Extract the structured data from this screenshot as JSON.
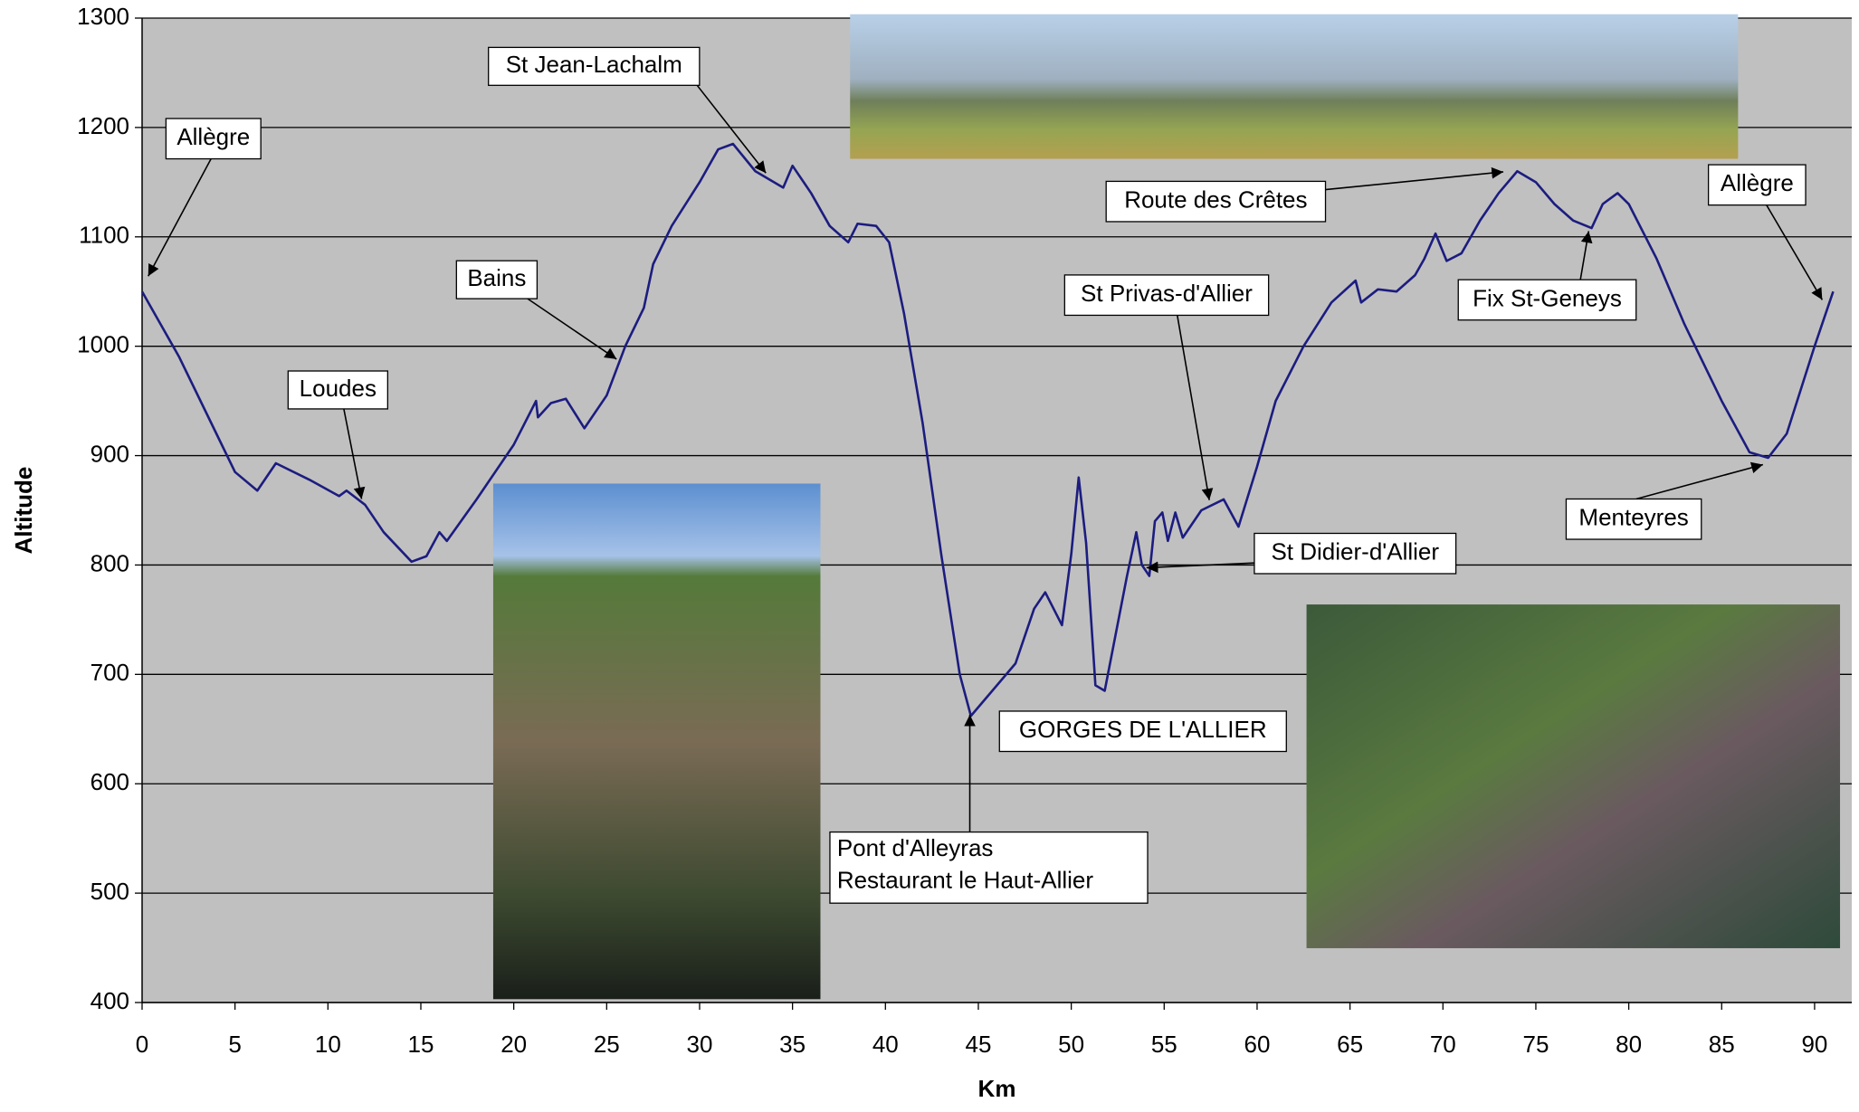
{
  "chart_data": {
    "type": "line",
    "xlabel": "Km",
    "ylabel": "Altitude",
    "xlim": [
      0,
      92
    ],
    "ylim": [
      400,
      1300
    ],
    "xticks": [
      0,
      5,
      10,
      15,
      20,
      25,
      30,
      35,
      40,
      45,
      50,
      55,
      60,
      65,
      70,
      75,
      80,
      85,
      90
    ],
    "yticks": [
      400,
      500,
      600,
      700,
      800,
      900,
      1000,
      1100,
      1200,
      1300
    ],
    "grid": true,
    "background": "#c0c0c0",
    "series": [
      {
        "color": "#1c1c80",
        "x": [
          0,
          2,
          4,
          5,
          6.2,
          7.2,
          9,
          10.6,
          11,
          12,
          13,
          14.5,
          15.3,
          16,
          16.4,
          18,
          20,
          21.2,
          21.3,
          22,
          22.8,
          23.8,
          25,
          26,
          27,
          27.5,
          28.5,
          30,
          31,
          31.8,
          33,
          34.5,
          35,
          36,
          37,
          38,
          38.5,
          39.5,
          40.2,
          41,
          42,
          43,
          44,
          44.6,
          45.5,
          47,
          48,
          48.6,
          49.5,
          50,
          50.4,
          50.8,
          51.3,
          51.8,
          53,
          53.5,
          53.8,
          54.2,
          54.5,
          54.9,
          55.2,
          55.6,
          56,
          57,
          58.2,
          59,
          60,
          61,
          62.5,
          64,
          65.3,
          65.6,
          66.5,
          67.5,
          68.5,
          69,
          69.6,
          70.2,
          71,
          72,
          73,
          74,
          75,
          76,
          77,
          78,
          78.6,
          79.4,
          80,
          81.5,
          83,
          85,
          86.5,
          87.5,
          88.5,
          90,
          91
        ],
        "values": [
          1050,
          990,
          920,
          885,
          868,
          893,
          878,
          863,
          868,
          855,
          830,
          803,
          808,
          830,
          822,
          860,
          910,
          950,
          935,
          948,
          952,
          925,
          955,
          1000,
          1035,
          1075,
          1110,
          1150,
          1180,
          1185,
          1160,
          1145,
          1165,
          1140,
          1110,
          1095,
          1112,
          1110,
          1095,
          1030,
          930,
          810,
          700,
          662,
          680,
          710,
          760,
          775,
          745,
          810,
          880,
          820,
          690,
          685,
          790,
          830,
          800,
          790,
          840,
          848,
          822,
          848,
          825,
          850,
          860,
          835,
          890,
          950,
          1000,
          1040,
          1060,
          1040,
          1052,
          1050,
          1065,
          1080,
          1103,
          1078,
          1085,
          1115,
          1140,
          1160,
          1150,
          1130,
          1115,
          1108,
          1130,
          1140,
          1130,
          1080,
          1020,
          950,
          903,
          898,
          920,
          1000,
          1050
        ]
      }
    ],
    "annotations": [
      "Allègre",
      "St Jean-Lachalm",
      "Bains",
      "Loudes",
      "Route des Crêtes",
      "St Privas-d'Allier",
      "Allègre",
      "Fix St-Geneys",
      "St Didier-d'Allier",
      "Menteyres",
      "GORGES DE L'ALLIER",
      [
        "Pont d'Alleyras",
        "Restaurant le Haut-Allier"
      ]
    ]
  }
}
